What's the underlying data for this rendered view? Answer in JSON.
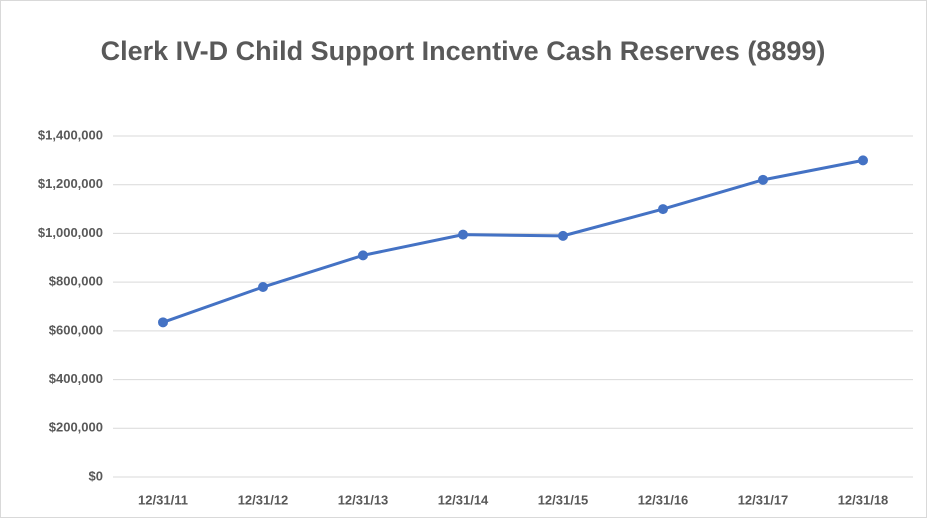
{
  "chart_data": {
    "type": "line",
    "title": "Clerk IV-D Child Support Incentive Cash Reserves (8899)",
    "categories": [
      "12/31/11",
      "12/31/12",
      "12/31/13",
      "12/31/14",
      "12/31/15",
      "12/31/16",
      "12/31/17",
      "12/31/18"
    ],
    "series": [
      {
        "name": "Cash Reserves",
        "color": "#4472c4",
        "values": [
          635000,
          780000,
          910000,
          995000,
          990000,
          1100000,
          1220000,
          1300000
        ]
      }
    ],
    "ylim": [
      0,
      1400000
    ],
    "yticks": [
      {
        "value": 0,
        "label": "$0"
      },
      {
        "value": 200000,
        "label": "$200,000"
      },
      {
        "value": 400000,
        "label": "$400,000"
      },
      {
        "value": 600000,
        "label": "$600,000"
      },
      {
        "value": 800000,
        "label": "$800,000"
      },
      {
        "value": 1000000,
        "label": "$1,000,000"
      },
      {
        "value": 1200000,
        "label": "$1,200,000"
      },
      {
        "value": 1400000,
        "label": "$1,400,000"
      }
    ],
    "grid": true,
    "legend": false
  }
}
